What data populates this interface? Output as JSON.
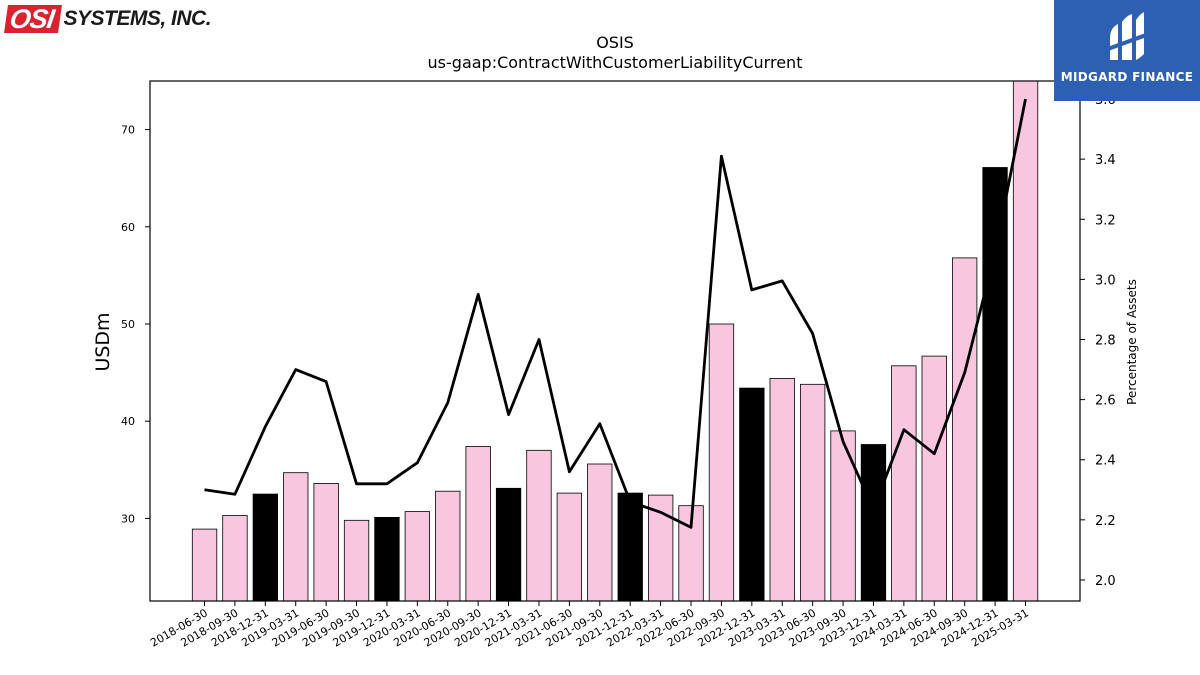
{
  "branding": {
    "left_logo_mark": "OSI",
    "left_logo_text": "SYSTEMS, INC.",
    "left_logo_color": "#d9232e",
    "right_logo_text": "MIDGARD FINANCE",
    "right_logo_color": "#2d5fb3"
  },
  "chart_data": {
    "type": "bar",
    "title": "OSIS",
    "subtitle": "us-gaap:ContractWithCustomerLiabilityCurrent",
    "ylabel": "USDm",
    "y2label": "Percentage of Assets",
    "ylim": [
      21.5,
      75
    ],
    "y2lim": [
      1.93,
      3.66
    ],
    "yticks": [
      30,
      40,
      50,
      60,
      70
    ],
    "y2ticks": [
      2.0,
      2.2,
      2.4,
      2.6,
      2.8,
      3.0,
      3.2,
      3.4,
      3.6
    ],
    "categories": [
      "2018-06-30",
      "2018-09-30",
      "2018-12-31",
      "2019-03-31",
      "2019-06-30",
      "2019-09-30",
      "2019-12-31",
      "2020-03-31",
      "2020-06-30",
      "2020-09-30",
      "2020-12-31",
      "2021-03-31",
      "2021-06-30",
      "2021-09-30",
      "2021-12-31",
      "2022-03-31",
      "2022-06-30",
      "2022-09-30",
      "2022-12-31",
      "2023-03-31",
      "2023-06-30",
      "2023-09-30",
      "2023-12-31",
      "2024-03-31",
      "2024-06-30",
      "2024-09-30",
      "2024-12-31",
      "2025-03-31"
    ],
    "series": [
      {
        "type": "bar",
        "values": [
          28.9,
          30.3,
          32.5,
          34.7,
          33.6,
          29.8,
          30.1,
          30.7,
          32.8,
          37.4,
          33.1,
          37.0,
          32.6,
          35.6,
          32.6,
          32.4,
          31.3,
          50.0,
          43.4,
          44.4,
          43.8,
          39.0,
          37.6,
          45.7,
          46.7,
          56.8,
          66.1,
          75.0
        ],
        "colors": [
          "#f9c6e0",
          "#f9c6e0",
          "#000000",
          "#f9c6e0",
          "#f9c6e0",
          "#f9c6e0",
          "#000000",
          "#f9c6e0",
          "#f9c6e0",
          "#f9c6e0",
          "#000000",
          "#f9c6e0",
          "#f9c6e0",
          "#f9c6e0",
          "#000000",
          "#f9c6e0",
          "#f9c6e0",
          "#f9c6e0",
          "#000000",
          "#f9c6e0",
          "#f9c6e0",
          "#f9c6e0",
          "#000000",
          "#f9c6e0",
          "#f9c6e0",
          "#f9c6e0",
          "#000000",
          "#f9c6e0"
        ]
      },
      {
        "type": "line",
        "axis": "right",
        "color": "#000000",
        "values": [
          2.3,
          2.285,
          2.51,
          2.7,
          2.66,
          2.32,
          2.32,
          2.39,
          2.59,
          2.95,
          2.55,
          2.8,
          2.36,
          2.52,
          2.26,
          2.225,
          2.175,
          3.41,
          2.965,
          2.995,
          2.82,
          2.46,
          2.235,
          2.5,
          2.42,
          2.69,
          3.09,
          3.6
        ]
      }
    ],
    "grid": false,
    "legend": "none"
  }
}
